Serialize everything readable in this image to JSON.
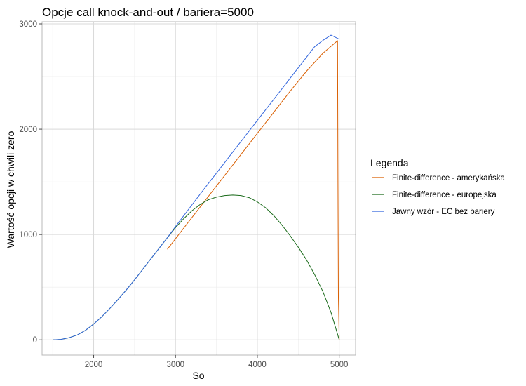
{
  "chart_data": {
    "type": "line",
    "title": "Opcje call knock-and-out / bariera=5000",
    "xlabel": "So",
    "ylabel": "Wartość opcji w chwili zero",
    "xlim": [
      1370,
      5200
    ],
    "ylim": [
      -145,
      3020
    ],
    "x_ticks": [
      2000,
      3000,
      4000,
      5000
    ],
    "y_ticks": [
      0,
      1000,
      2000,
      3000
    ],
    "grid": true,
    "legend_position": "right",
    "legend_title": "Legenda",
    "series": [
      {
        "name": "Finite-difference - amerykańska",
        "color": "#d95f02",
        "points": [
          [
            2900,
            860
          ],
          [
            3000,
            960
          ],
          [
            3200,
            1160
          ],
          [
            3400,
            1360
          ],
          [
            3600,
            1560
          ],
          [
            3800,
            1760
          ],
          [
            4000,
            1960
          ],
          [
            4200,
            2160
          ],
          [
            4400,
            2360
          ],
          [
            4600,
            2550
          ],
          [
            4800,
            2720
          ],
          [
            4980,
            2840
          ],
          [
            4985,
            1500
          ],
          [
            4990,
            400
          ],
          [
            5000,
            0
          ]
        ]
      },
      {
        "name": "Finite-difference - europejska",
        "color": "#1b6b1b",
        "points": [
          [
            1500,
            0
          ],
          [
            1600,
            4
          ],
          [
            1700,
            20
          ],
          [
            1800,
            46
          ],
          [
            1900,
            90
          ],
          [
            2000,
            150
          ],
          [
            2100,
            220
          ],
          [
            2200,
            300
          ],
          [
            2300,
            385
          ],
          [
            2400,
            475
          ],
          [
            2500,
            570
          ],
          [
            2600,
            670
          ],
          [
            2700,
            770
          ],
          [
            2800,
            870
          ],
          [
            2900,
            970
          ],
          [
            3000,
            1065
          ],
          [
            3100,
            1150
          ],
          [
            3200,
            1225
          ],
          [
            3300,
            1285
          ],
          [
            3400,
            1330
          ],
          [
            3500,
            1355
          ],
          [
            3600,
            1370
          ],
          [
            3700,
            1375
          ],
          [
            3800,
            1370
          ],
          [
            3900,
            1350
          ],
          [
            4000,
            1310
          ],
          [
            4100,
            1255
          ],
          [
            4200,
            1180
          ],
          [
            4300,
            1090
          ],
          [
            4400,
            990
          ],
          [
            4500,
            880
          ],
          [
            4600,
            760
          ],
          [
            4700,
            620
          ],
          [
            4800,
            460
          ],
          [
            4900,
            260
          ],
          [
            5000,
            0
          ]
        ]
      },
      {
        "name": "Jawny wzór - EC bez bariery",
        "color": "#3366dd",
        "points": [
          [
            1500,
            0
          ],
          [
            1600,
            4
          ],
          [
            1700,
            20
          ],
          [
            1800,
            46
          ],
          [
            1900,
            90
          ],
          [
            2000,
            150
          ],
          [
            2100,
            220
          ],
          [
            2200,
            300
          ],
          [
            2300,
            385
          ],
          [
            2400,
            475
          ],
          [
            2500,
            570
          ],
          [
            2600,
            670
          ],
          [
            2700,
            770
          ],
          [
            2800,
            870
          ],
          [
            2900,
            970
          ],
          [
            3000,
            1075
          ],
          [
            3100,
            1178
          ],
          [
            3200,
            1281
          ],
          [
            3300,
            1383
          ],
          [
            3400,
            1483
          ],
          [
            3500,
            1583
          ],
          [
            3600,
            1683
          ],
          [
            3700,
            1783
          ],
          [
            3800,
            1883
          ],
          [
            3900,
            1983
          ],
          [
            4000,
            2083
          ],
          [
            4100,
            2183
          ],
          [
            4200,
            2283
          ],
          [
            4300,
            2383
          ],
          [
            4400,
            2483
          ],
          [
            4500,
            2583
          ],
          [
            4600,
            2683
          ],
          [
            4700,
            2783
          ],
          [
            4800,
            2843
          ],
          [
            4900,
            2893
          ],
          [
            5000,
            2855
          ]
        ]
      }
    ]
  }
}
